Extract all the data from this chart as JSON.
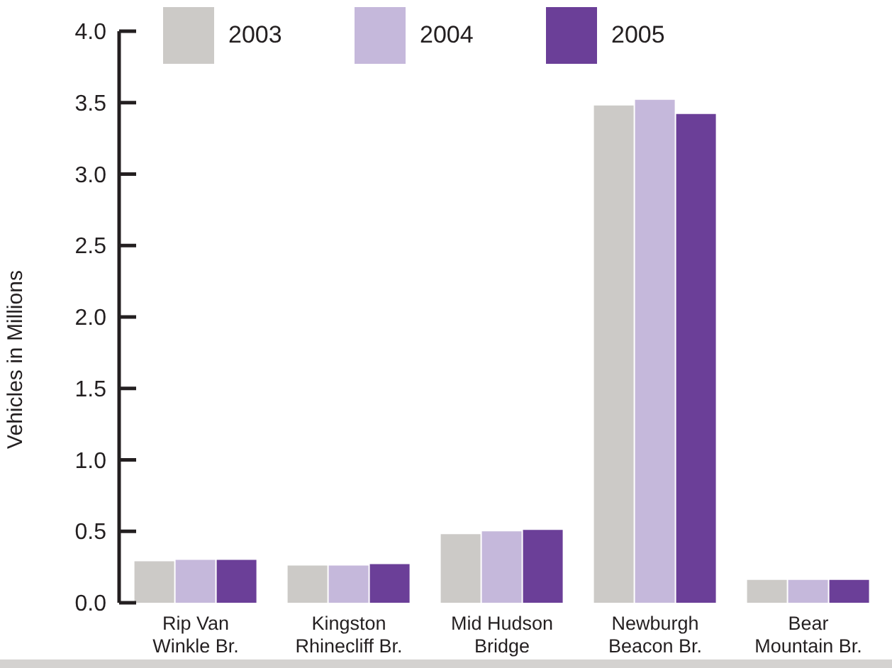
{
  "chart_data": {
    "type": "bar",
    "ylabel": "Vehicles in Millions",
    "categories": [
      "Rip Van Winkle Br.",
      "Kingston Rhinecliff Br.",
      "Mid Hudson Bridge",
      "Newburgh Beacon Br.",
      "Bear Mountain Br."
    ],
    "series": [
      {
        "name": "2003",
        "color": "#cccac7",
        "values": [
          0.29,
          0.26,
          0.48,
          3.48,
          0.16
        ]
      },
      {
        "name": "2004",
        "color": "#c5b8db",
        "values": [
          0.3,
          0.26,
          0.5,
          3.52,
          0.16
        ]
      },
      {
        "name": "2005",
        "color": "#6b3f98",
        "values": [
          0.3,
          0.27,
          0.51,
          3.42,
          0.16
        ]
      }
    ],
    "ylim": [
      0,
      4
    ],
    "yticks": [
      {
        "value": 0,
        "label": "0.0"
      },
      0.5,
      {
        "value": 1,
        "label": "1.0"
      },
      1.5,
      {
        "value": 2,
        "label": "2.0"
      },
      2.5,
      {
        "value": 3,
        "label": "3.0"
      },
      3.5,
      {
        "value": 4,
        "label": "4.0"
      }
    ],
    "legend": "top left"
  }
}
